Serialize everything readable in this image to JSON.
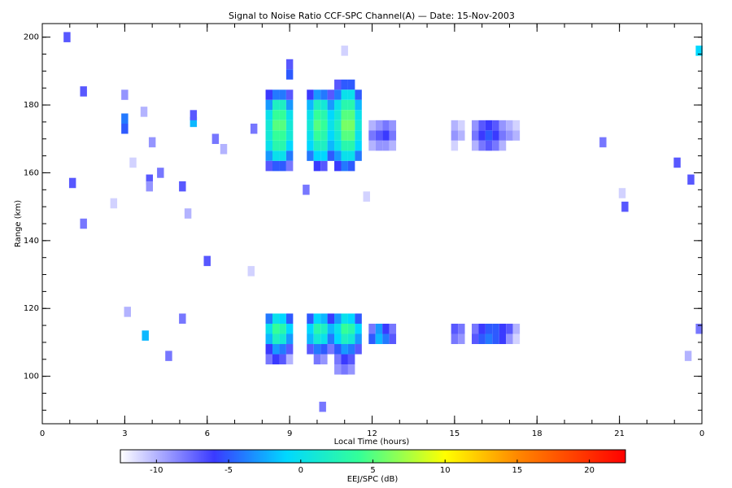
{
  "chart_data": {
    "type": "heatmap",
    "title": "Signal to Noise Ratio CCF-SPC Channel(A) — Date: 15-Nov-2003",
    "xlabel": "Local Time (hours)",
    "ylabel": "Range (km)",
    "colorbar_label": "EEJ/SPC (dB)",
    "xlim": [
      0,
      24
    ],
    "xticks": [
      0,
      3,
      6,
      9,
      12,
      15,
      18,
      21,
      {
        "value": 24,
        "label": "0"
      }
    ],
    "ylim": [
      86,
      204
    ],
    "yticks": [
      100,
      120,
      140,
      160,
      180,
      200
    ],
    "clim": [
      -12.5,
      22.5
    ],
    "cticks": [
      -10,
      -5,
      0,
      5,
      10,
      15,
      20
    ],
    "colormap": [
      {
        "value": -12.5,
        "color": "#ffffff"
      },
      {
        "value": -6,
        "color": "#3a3aff"
      },
      {
        "value": -1,
        "color": "#00d8ff"
      },
      {
        "value": 4,
        "color": "#33ff99"
      },
      {
        "value": 10,
        "color": "#ffff00"
      },
      {
        "value": 15,
        "color": "#ff8800"
      },
      {
        "value": 22.5,
        "color": "#ff0000"
      }
    ],
    "cells": [
      [
        8.25,
        183,
        -6
      ],
      [
        8.25,
        180,
        -3
      ],
      [
        8.25,
        177,
        0
      ],
      [
        8.25,
        174,
        1
      ],
      [
        8.25,
        171,
        1
      ],
      [
        8.25,
        168,
        0
      ],
      [
        8.25,
        165,
        -3
      ],
      [
        8.25,
        162,
        -7
      ],
      [
        8.5,
        183,
        -4
      ],
      [
        8.5,
        180,
        2
      ],
      [
        8.5,
        177,
        4
      ],
      [
        8.5,
        174,
        5
      ],
      [
        8.5,
        171,
        4
      ],
      [
        8.5,
        168,
        3
      ],
      [
        8.5,
        165,
        0
      ],
      [
        8.5,
        162,
        -5
      ],
      [
        8.75,
        183,
        -4
      ],
      [
        8.75,
        180,
        2
      ],
      [
        8.75,
        177,
        4
      ],
      [
        8.75,
        174,
        5
      ],
      [
        8.75,
        171,
        4
      ],
      [
        8.75,
        168,
        3
      ],
      [
        8.75,
        165,
        0
      ],
      [
        8.75,
        162,
        -5
      ],
      [
        9.0,
        183,
        -7
      ],
      [
        9.0,
        180,
        -3
      ],
      [
        9.0,
        177,
        0
      ],
      [
        9.0,
        174,
        1
      ],
      [
        9.0,
        171,
        1
      ],
      [
        9.0,
        168,
        -1
      ],
      [
        9.0,
        165,
        -4
      ],
      [
        9.0,
        162,
        -8
      ],
      [
        9.75,
        183,
        -6
      ],
      [
        9.75,
        180,
        -2
      ],
      [
        9.75,
        177,
        0
      ],
      [
        9.75,
        174,
        1
      ],
      [
        9.75,
        171,
        0
      ],
      [
        9.75,
        168,
        -1
      ],
      [
        9.75,
        165,
        -4
      ],
      [
        10.0,
        183,
        -3
      ],
      [
        10.0,
        180,
        2
      ],
      [
        10.0,
        177,
        4
      ],
      [
        10.0,
        174,
        5
      ],
      [
        10.0,
        171,
        4
      ],
      [
        10.0,
        168,
        2
      ],
      [
        10.0,
        165,
        -1
      ],
      [
        10.0,
        162,
        -6
      ],
      [
        10.25,
        183,
        -4
      ],
      [
        10.25,
        180,
        1
      ],
      [
        10.25,
        177,
        3
      ],
      [
        10.25,
        174,
        4
      ],
      [
        10.25,
        171,
        3
      ],
      [
        10.25,
        168,
        2
      ],
      [
        10.25,
        165,
        -1
      ],
      [
        10.25,
        162,
        -7
      ],
      [
        10.5,
        183,
        -7
      ],
      [
        10.5,
        180,
        -3
      ],
      [
        10.5,
        177,
        -1
      ],
      [
        10.5,
        174,
        0
      ],
      [
        10.5,
        171,
        -1
      ],
      [
        10.5,
        168,
        -2
      ],
      [
        10.5,
        165,
        -5
      ],
      [
        10.75,
        186,
        -7
      ],
      [
        10.75,
        183,
        -4
      ],
      [
        10.75,
        180,
        0
      ],
      [
        10.75,
        177,
        1
      ],
      [
        10.75,
        174,
        2
      ],
      [
        10.75,
        171,
        1
      ],
      [
        10.75,
        168,
        0
      ],
      [
        10.75,
        165,
        -3
      ],
      [
        10.75,
        162,
        -6
      ],
      [
        11.0,
        186,
        -5
      ],
      [
        11.0,
        183,
        0
      ],
      [
        11.0,
        180,
        3
      ],
      [
        11.0,
        177,
        5
      ],
      [
        11.0,
        174,
        6
      ],
      [
        11.0,
        171,
        5
      ],
      [
        11.0,
        168,
        3
      ],
      [
        11.0,
        165,
        0
      ],
      [
        11.0,
        162,
        -4
      ],
      [
        11.25,
        186,
        -5
      ],
      [
        11.25,
        183,
        0
      ],
      [
        11.25,
        180,
        3
      ],
      [
        11.25,
        177,
        5
      ],
      [
        11.25,
        174,
        6
      ],
      [
        11.25,
        171,
        5
      ],
      [
        11.25,
        168,
        3
      ],
      [
        11.25,
        165,
        0
      ],
      [
        11.25,
        162,
        -5
      ],
      [
        11.5,
        183,
        -5
      ],
      [
        11.5,
        180,
        -2
      ],
      [
        11.5,
        177,
        0
      ],
      [
        11.5,
        174,
        1
      ],
      [
        11.5,
        171,
        0
      ],
      [
        11.5,
        168,
        -1
      ],
      [
        11.5,
        165,
        -4
      ],
      [
        12.0,
        174,
        -10
      ],
      [
        12.0,
        171,
        -8
      ],
      [
        12.0,
        168,
        -10
      ],
      [
        12.25,
        174,
        -9
      ],
      [
        12.25,
        171,
        -7
      ],
      [
        12.25,
        168,
        -9
      ],
      [
        12.5,
        174,
        -8
      ],
      [
        12.5,
        171,
        -6
      ],
      [
        12.5,
        168,
        -9
      ],
      [
        12.75,
        174,
        -9
      ],
      [
        12.75,
        171,
        -8
      ],
      [
        12.75,
        168,
        -10
      ],
      [
        15.0,
        174,
        -10
      ],
      [
        15.0,
        171,
        -9
      ],
      [
        15.0,
        168,
        -11
      ],
      [
        15.25,
        174,
        -11
      ],
      [
        15.25,
        171,
        -10
      ],
      [
        15.75,
        174,
        -9
      ],
      [
        15.75,
        171,
        -8
      ],
      [
        15.75,
        168,
        -10
      ],
      [
        16.0,
        174,
        -7
      ],
      [
        16.0,
        171,
        -6
      ],
      [
        16.0,
        168,
        -8
      ],
      [
        16.25,
        174,
        -6
      ],
      [
        16.25,
        171,
        -5
      ],
      [
        16.25,
        168,
        -7
      ],
      [
        16.5,
        174,
        -7
      ],
      [
        16.5,
        171,
        -6
      ],
      [
        16.5,
        168,
        -8
      ],
      [
        16.75,
        174,
        -9
      ],
      [
        16.75,
        171,
        -8
      ],
      [
        16.75,
        168,
        -10
      ],
      [
        17.0,
        174,
        -10
      ],
      [
        17.0,
        171,
        -9
      ],
      [
        17.25,
        174,
        -11
      ],
      [
        17.25,
        171,
        -10
      ],
      [
        8.25,
        117,
        -4
      ],
      [
        8.25,
        114,
        0
      ],
      [
        8.25,
        111,
        -2
      ],
      [
        8.25,
        108,
        -6
      ],
      [
        8.25,
        105,
        -8
      ],
      [
        8.5,
        117,
        0
      ],
      [
        8.5,
        114,
        4
      ],
      [
        8.5,
        111,
        2
      ],
      [
        8.5,
        108,
        -3
      ],
      [
        8.5,
        105,
        -6
      ],
      [
        8.75,
        117,
        -1
      ],
      [
        8.75,
        114,
        3
      ],
      [
        8.75,
        111,
        1
      ],
      [
        8.75,
        108,
        -4
      ],
      [
        8.75,
        105,
        -7
      ],
      [
        9.0,
        117,
        -5
      ],
      [
        9.0,
        114,
        -1
      ],
      [
        9.0,
        111,
        -3
      ],
      [
        9.0,
        108,
        -7
      ],
      [
        9.0,
        105,
        -10
      ],
      [
        9.75,
        117,
        -5
      ],
      [
        9.75,
        114,
        -1
      ],
      [
        9.75,
        111,
        -2
      ],
      [
        9.75,
        108,
        -7
      ],
      [
        10.0,
        117,
        -1
      ],
      [
        10.0,
        114,
        3
      ],
      [
        10.0,
        111,
        1
      ],
      [
        10.0,
        108,
        -4
      ],
      [
        10.0,
        105,
        -8
      ],
      [
        10.25,
        117,
        -2
      ],
      [
        10.25,
        114,
        2
      ],
      [
        10.25,
        111,
        0
      ],
      [
        10.25,
        108,
        -5
      ],
      [
        10.25,
        105,
        -9
      ],
      [
        10.5,
        117,
        -6
      ],
      [
        10.5,
        114,
        -2
      ],
      [
        10.5,
        111,
        -4
      ],
      [
        10.5,
        108,
        -8
      ],
      [
        10.75,
        117,
        -3
      ],
      [
        10.75,
        114,
        0
      ],
      [
        10.75,
        111,
        -1
      ],
      [
        10.75,
        108,
        -5
      ],
      [
        10.75,
        105,
        -8
      ],
      [
        10.75,
        102,
        -9
      ],
      [
        11.0,
        117,
        0
      ],
      [
        11.0,
        114,
        4
      ],
      [
        11.0,
        111,
        2
      ],
      [
        11.0,
        108,
        -3
      ],
      [
        11.0,
        105,
        -6
      ],
      [
        11.0,
        102,
        -8
      ],
      [
        11.25,
        117,
        -1
      ],
      [
        11.25,
        114,
        3
      ],
      [
        11.25,
        111,
        1
      ],
      [
        11.25,
        108,
        -4
      ],
      [
        11.25,
        105,
        -7
      ],
      [
        11.25,
        102,
        -9
      ],
      [
        11.5,
        117,
        -5
      ],
      [
        11.5,
        114,
        -1
      ],
      [
        11.5,
        111,
        -3
      ],
      [
        11.5,
        108,
        -7
      ],
      [
        12.0,
        114,
        -8
      ],
      [
        12.0,
        111,
        -5
      ],
      [
        12.25,
        114,
        -3
      ],
      [
        12.25,
        111,
        -2
      ],
      [
        12.5,
        114,
        -6
      ],
      [
        12.5,
        111,
        -4
      ],
      [
        12.75,
        114,
        -8
      ],
      [
        12.75,
        111,
        -7
      ],
      [
        15.0,
        114,
        -7
      ],
      [
        15.0,
        111,
        -8
      ],
      [
        15.25,
        114,
        -8
      ],
      [
        15.25,
        111,
        -9
      ],
      [
        15.75,
        114,
        -8
      ],
      [
        15.75,
        111,
        -7
      ],
      [
        16.0,
        114,
        -6
      ],
      [
        16.0,
        111,
        -5
      ],
      [
        16.25,
        114,
        -5
      ],
      [
        16.25,
        111,
        -4
      ],
      [
        16.5,
        114,
        -5
      ],
      [
        16.5,
        111,
        -5
      ],
      [
        16.75,
        114,
        -6
      ],
      [
        16.75,
        111,
        -6
      ],
      [
        17.0,
        114,
        -7
      ],
      [
        17.0,
        111,
        -9
      ],
      [
        17.25,
        114,
        -10
      ],
      [
        17.25,
        111,
        -11
      ],
      [
        0.9,
        200,
        -7
      ],
      [
        1.5,
        184,
        -7
      ],
      [
        1.1,
        157,
        -7
      ],
      [
        1.5,
        145,
        -8
      ],
      [
        3.0,
        176,
        -4
      ],
      [
        3.0,
        173,
        -5
      ],
      [
        3.75,
        112,
        -2
      ],
      [
        5.5,
        175,
        -2
      ],
      [
        5.5,
        177,
        -7
      ],
      [
        5.1,
        156,
        -7
      ],
      [
        6.0,
        134,
        -7
      ],
      [
        3.9,
        158,
        -7
      ],
      [
        3.9,
        156,
        -9
      ],
      [
        4.3,
        160,
        -8
      ],
      [
        6.3,
        170,
        -8
      ],
      [
        9.0,
        192,
        -7
      ],
      [
        9.0,
        189,
        -5
      ],
      [
        9.6,
        155,
        -8
      ],
      [
        10.2,
        91,
        -8
      ],
      [
        4.6,
        106,
        -8
      ],
      [
        5.1,
        117,
        -8
      ],
      [
        23.6,
        158,
        -7
      ],
      [
        23.1,
        163,
        -7
      ],
      [
        21.2,
        150,
        -7
      ],
      [
        23.9,
        114,
        -8
      ],
      [
        23.9,
        196,
        -1
      ],
      [
        11.0,
        196,
        -11
      ],
      [
        20.4,
        169,
        -8
      ],
      [
        7.7,
        173,
        -8
      ],
      [
        2.6,
        151,
        -11
      ],
      [
        5.3,
        148,
        -10
      ],
      [
        7.6,
        131,
        -11
      ],
      [
        11.8,
        153,
        -11
      ],
      [
        23.5,
        106,
        -10
      ],
      [
        21.1,
        154,
        -11
      ],
      [
        6.6,
        167,
        -10
      ],
      [
        3.1,
        119,
        -10
      ],
      [
        3.0,
        183,
        -9
      ],
      [
        3.7,
        178,
        -10
      ],
      [
        3.3,
        163,
        -11
      ],
      [
        4.0,
        169,
        -9
      ]
    ]
  }
}
